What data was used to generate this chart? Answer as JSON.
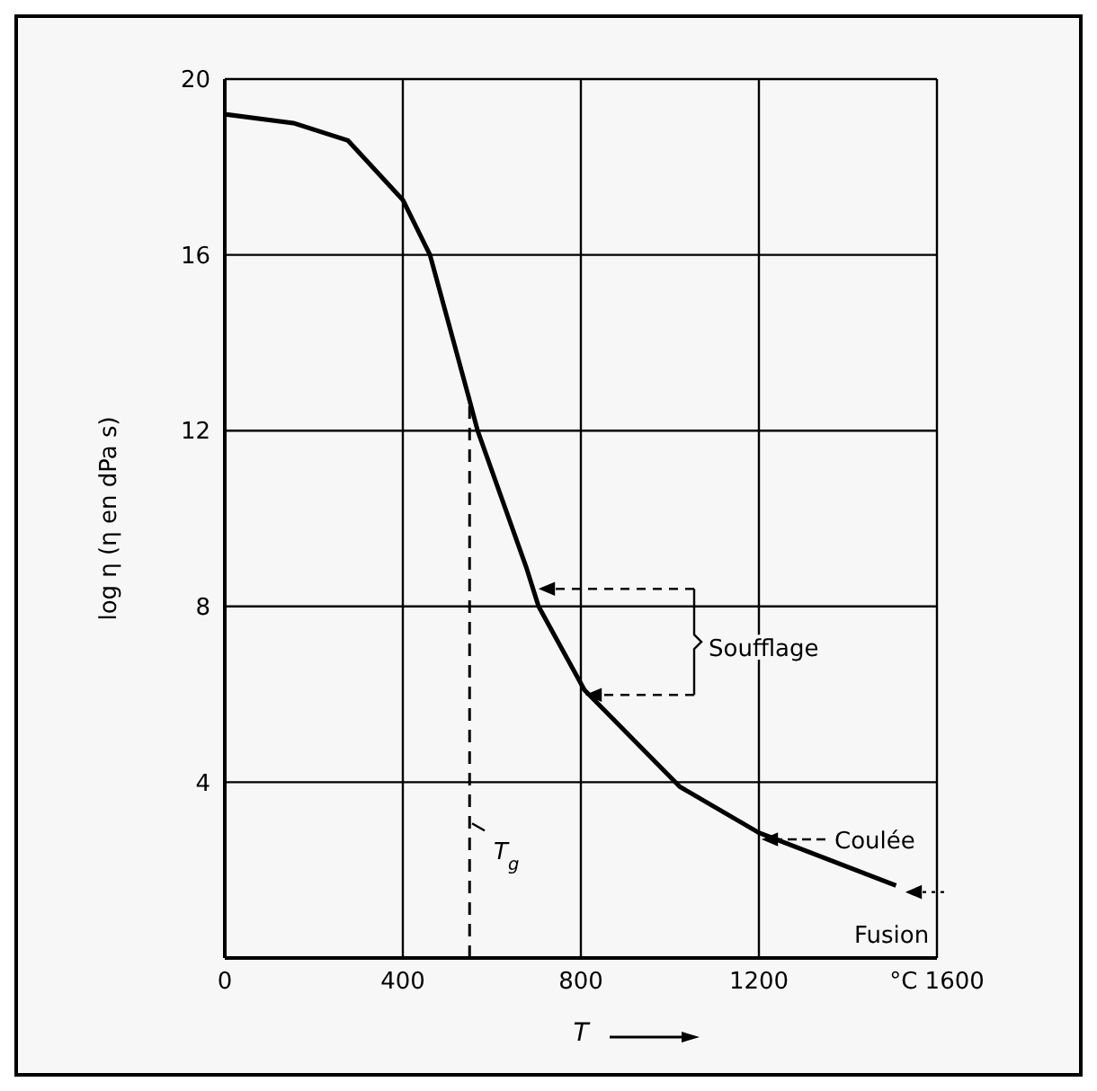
{
  "chart_data": {
    "type": "line",
    "xlabel": "T",
    "ylabel": "log η (η en dPa s)",
    "xlim": [
      0,
      1600
    ],
    "xticks": [
      0,
      400,
      800,
      1200,
      {
        "value": 1600,
        "label": "°C 1600"
      }
    ],
    "ylim": [
      0,
      20
    ],
    "yticks": [
      4,
      8,
      12,
      16,
      20
    ],
    "grid": true,
    "marker": "none",
    "series": [
      {
        "color": "#000000",
        "line_style": "solid",
        "x": [
          0,
          154,
          277,
          400,
          461,
          547,
          568,
          677,
          705,
          808,
          1022,
          1200,
          1508
        ],
        "values": [
          19.2,
          19.0,
          18.6,
          17.25,
          16.0,
          12.8,
          12.0,
          8.9,
          8.0,
          6.1,
          3.9,
          2.85,
          1.65
        ]
      },
      {
        "color": "#000000",
        "line_style": "dashed",
        "x": [
          550,
          550
        ],
        "values": [
          0,
          12.6
        ]
      }
    ],
    "annotations": [
      {
        "text": "T$_{g}$",
        "x": 550,
        "y": 3.2
      },
      "Soufflage",
      "Coulée",
      {
        "text": "Fusion",
        "x": 1508,
        "y": 1.65
      }
    ]
  }
}
